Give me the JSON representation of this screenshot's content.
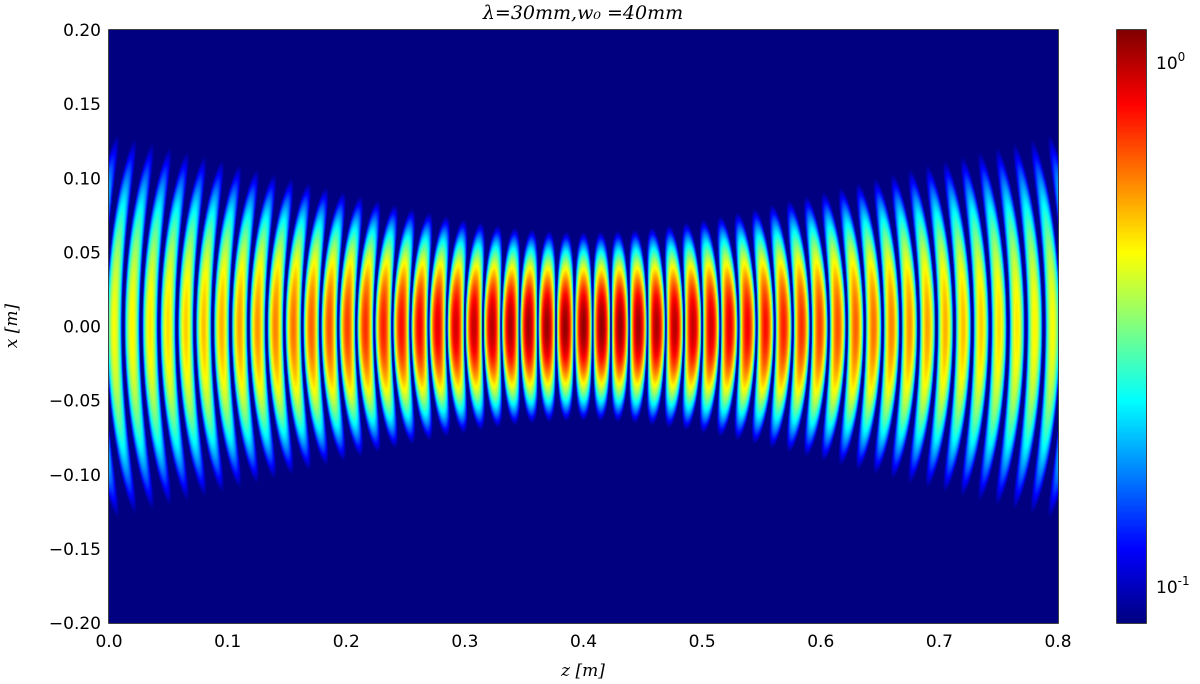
{
  "chart_data": {
    "type": "heatmap",
    "title": "λ=30mm,w₀ =40mm",
    "xlabel": "z [m]",
    "ylabel": "x [m]",
    "xlim": [
      0.0,
      0.8
    ],
    "ylim": [
      0.2,
      -0.2
    ],
    "x_ticks": [
      "0.0",
      "0.1",
      "0.2",
      "0.3",
      "0.4",
      "0.5",
      "0.6",
      "0.7",
      "0.8"
    ],
    "x_tick_values": [
      0.0,
      0.1,
      0.2,
      0.3,
      0.4,
      0.5,
      0.6,
      0.7,
      0.8
    ],
    "y_ticks": [
      "−0.20",
      "−0.15",
      "−0.10",
      "−0.05",
      "0.00",
      "0.05",
      "0.10",
      "0.15",
      "0.20"
    ],
    "y_tick_values": [
      -0.2,
      -0.15,
      -0.1,
      -0.05,
      0.0,
      0.05,
      0.1,
      0.15,
      0.2
    ],
    "wavelength_m": 0.03,
    "waist_m": 0.04,
    "focus_z_m": 0.4,
    "colormap": "jet",
    "color_scale": "log",
    "colorbar": {
      "range": [
        0.085,
        1.15
      ],
      "ticks": [
        {
          "value": 1.0,
          "base": "10",
          "exp": "0"
        },
        {
          "value": 0.1,
          "base": "10",
          "exp": "-1"
        }
      ]
    },
    "grid": false
  }
}
